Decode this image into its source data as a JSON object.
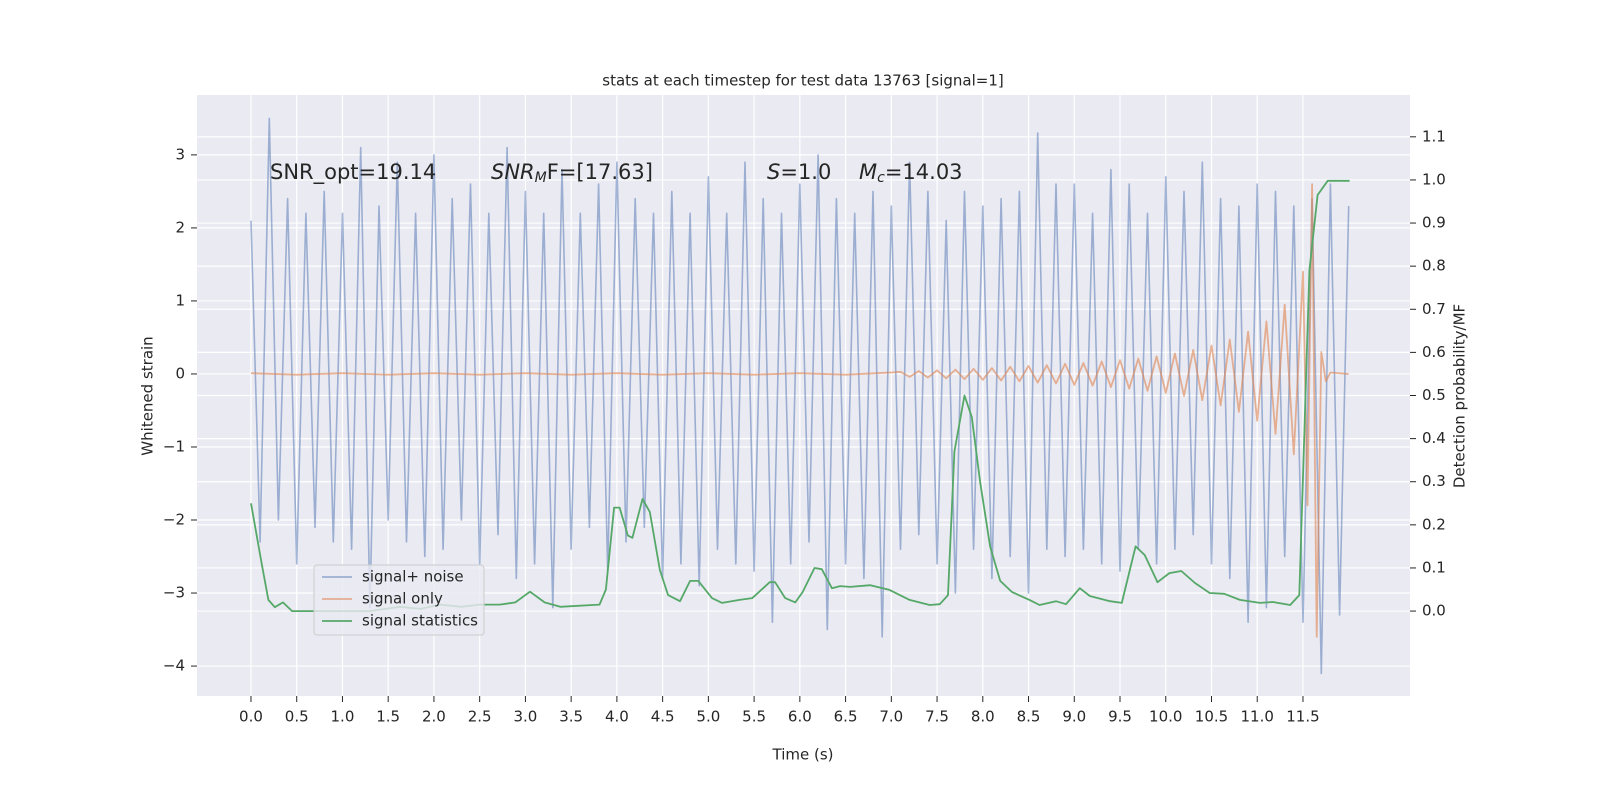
{
  "chart_data": {
    "type": "line",
    "title": "stats at each timestep for test data 13763 [signal=1]",
    "xlabel": "Time (s)",
    "ylabel": "Whitened strain",
    "y2label": "Detection probability/MF",
    "annotations": [
      {
        "text": "SNR_opt=19.14"
      },
      {
        "symbol": "SNR",
        "sub": "M",
        "text": "F=[17.63]"
      },
      {
        "symbol": "S",
        "text": "=1.0"
      },
      {
        "symbol": "M",
        "sub": "c",
        "text": "=14.03"
      }
    ],
    "xlim": [
      -0.59,
      12.67
    ],
    "ylim": [
      -4.41,
      3.82
    ],
    "y2lim": [
      -0.197,
      1.197
    ],
    "xticks": [
      {
        "value": 0,
        "label": "0.0"
      },
      0.5,
      {
        "value": 1,
        "label": "1.0"
      },
      1.5,
      {
        "value": 2,
        "label": "2.0"
      },
      2.5,
      {
        "value": 3,
        "label": "3.0"
      },
      3.5,
      {
        "value": 4,
        "label": "4.0"
      },
      4.5,
      {
        "value": 5,
        "label": "5.0"
      },
      5.5,
      {
        "value": 6,
        "label": "6.0"
      },
      6.5,
      {
        "value": 7,
        "label": "7.0"
      },
      7.5,
      {
        "value": 8,
        "label": "8.0"
      },
      8.5,
      {
        "value": 9,
        "label": "9.0"
      },
      9.5,
      {
        "value": 10,
        "label": "10.0"
      },
      10.5,
      {
        "value": 11,
        "label": "11.0"
      },
      11.5
    ],
    "yticks": [
      {
        "value": -4,
        "label": "−4"
      },
      {
        "value": -3,
        "label": "−3"
      },
      {
        "value": -2,
        "label": "−2"
      },
      {
        "value": -1,
        "label": "−1"
      },
      0,
      1,
      2,
      3
    ],
    "y2ticks": [
      {
        "value": 0,
        "label": "0.0"
      },
      0.1,
      0.2,
      0.3,
      0.4,
      0.5,
      0.6,
      0.7,
      0.8,
      0.9,
      {
        "value": 1,
        "label": "1.0"
      },
      1.1
    ],
    "grid": true,
    "legend": "lower left",
    "series": [
      {
        "name": "signal+ noise",
        "color": "#4c72b0",
        "opacity": 0.5,
        "x": [
          0,
          0.1,
          0.2,
          0.3,
          0.4,
          0.5,
          0.6,
          0.7,
          0.8,
          0.9,
          1,
          1.1,
          1.2,
          1.3,
          1.4,
          1.5,
          1.6,
          1.7,
          1.8,
          1.9,
          2,
          2.1,
          2.2,
          2.3,
          2.4,
          2.5,
          2.6,
          2.7,
          2.8,
          2.9,
          3,
          3.1,
          3.2,
          3.3,
          3.4,
          3.5,
          3.6,
          3.7,
          3.8,
          3.9,
          4,
          4.1,
          4.2,
          4.3,
          4.4,
          4.5,
          4.6,
          4.7,
          4.8,
          4.9,
          5,
          5.1,
          5.2,
          5.3,
          5.4,
          5.5,
          5.6,
          5.7,
          5.8,
          5.9,
          6,
          6.1,
          6.2,
          6.3,
          6.4,
          6.5,
          6.6,
          6.7,
          6.8,
          6.9,
          7,
          7.1,
          7.2,
          7.3,
          7.4,
          7.5,
          7.6,
          7.7,
          7.8,
          7.9,
          8,
          8.1,
          8.2,
          8.3,
          8.4,
          8.5,
          8.6,
          8.7,
          8.8,
          8.9,
          9,
          9.1,
          9.2,
          9.3,
          9.4,
          9.5,
          9.6,
          9.7,
          9.8,
          9.9,
          10,
          10.1,
          10.2,
          10.3,
          10.4,
          10.5,
          10.6,
          10.7,
          10.8,
          10.9,
          11,
          11.1,
          11.2,
          11.3,
          11.4,
          11.5,
          11.6,
          11.7,
          11.8,
          11.9,
          12
        ],
        "values": [
          2.1,
          -2.3,
          3.5,
          -2.0,
          2.4,
          -2.6,
          2.2,
          -2.1,
          2.5,
          -2.3,
          2.2,
          -2.4,
          3.1,
          -3.2,
          2.3,
          -2.0,
          2.9,
          -2.3,
          2.2,
          -2.5,
          3.0,
          -2.4,
          2.4,
          -2.0,
          2.6,
          -2.6,
          2.2,
          -2.2,
          3.1,
          -2.8,
          2.5,
          -2.6,
          2.2,
          -3.2,
          2.8,
          -2.4,
          2.2,
          -2.1,
          2.6,
          -2.7,
          2.9,
          -2.3,
          2.4,
          -2.1,
          2.2,
          -2.8,
          2.5,
          -2.6,
          2.2,
          -2.9,
          2.7,
          -2.4,
          2.2,
          -2.6,
          2.9,
          -2.7,
          2.4,
          -3.4,
          2.2,
          -2.6,
          2.6,
          -2.3,
          3.0,
          -3.5,
          2.4,
          -2.6,
          2.2,
          -2.8,
          2.5,
          -3.6,
          2.3,
          -2.4,
          2.9,
          -2.2,
          2.5,
          -2.6,
          2.1,
          -3.0,
          2.5,
          -2.4,
          2.3,
          -2.8,
          2.4,
          -2.5,
          2.5,
          -3.0,
          3.3,
          -2.4,
          2.6,
          -2.5,
          2.6,
          -2.4,
          2.2,
          -2.6,
          2.8,
          -2.7,
          2.6,
          -2.4,
          2.2,
          -2.6,
          2.7,
          -2.4,
          2.5,
          -2.2,
          2.9,
          -2.6,
          2.4,
          -2.8,
          2.3,
          -3.4,
          2.6,
          -3.2,
          2.5,
          -2.5,
          2.3,
          -3.4,
          2.4,
          -4.1,
          2.6,
          -3.3,
          2.3
        ]
      },
      {
        "name": "signal only",
        "color": "#dd8452",
        "opacity": 0.6,
        "x": [
          0,
          0.5,
          1,
          1.5,
          2,
          2.5,
          3,
          3.5,
          4,
          4.5,
          5,
          5.5,
          6,
          6.5,
          7,
          7.1,
          7.2,
          7.3,
          7.4,
          7.5,
          7.6,
          7.7,
          7.8,
          7.9,
          8,
          8.1,
          8.2,
          8.3,
          8.4,
          8.5,
          8.6,
          8.7,
          8.8,
          8.9,
          9,
          9.1,
          9.2,
          9.3,
          9.4,
          9.5,
          9.6,
          9.7,
          9.8,
          9.9,
          10,
          10.1,
          10.2,
          10.3,
          10.4,
          10.5,
          10.6,
          10.7,
          10.8,
          10.9,
          11,
          11.1,
          11.2,
          11.3,
          11.4,
          11.5,
          11.55,
          11.6,
          11.65,
          11.7,
          11.75,
          11.8,
          12
        ],
        "values": [
          0.01,
          -0.01,
          0.01,
          -0.01,
          0.01,
          -0.01,
          0.01,
          -0.01,
          0.01,
          -0.01,
          0.01,
          -0.01,
          0.01,
          -0.01,
          0.02,
          0.03,
          -0.04,
          0.04,
          -0.05,
          0.05,
          -0.06,
          0.06,
          -0.07,
          0.07,
          -0.08,
          0.08,
          -0.09,
          0.1,
          -0.1,
          0.11,
          -0.12,
          0.12,
          -0.13,
          0.14,
          -0.15,
          0.15,
          -0.16,
          0.17,
          -0.18,
          0.19,
          -0.2,
          0.21,
          -0.23,
          0.24,
          -0.26,
          0.28,
          -0.3,
          0.33,
          -0.36,
          0.39,
          -0.43,
          0.47,
          -0.52,
          0.58,
          -0.64,
          0.72,
          -0.82,
          0.95,
          -1.1,
          1.4,
          -1.8,
          2.6,
          -3.6,
          0.3,
          -0.1,
          0.02,
          0.0
        ]
      },
      {
        "name": "signal statistics",
        "color": "#55a868",
        "opacity": 1,
        "axis": "y2",
        "x": [
          0,
          0.12,
          0.19,
          0.26,
          0.35,
          0.45,
          0.65,
          0.97,
          1.3,
          1.63,
          1.85,
          2.07,
          2.3,
          2.5,
          2.72,
          2.89,
          3.05,
          3.21,
          3.38,
          3.81,
          3.88,
          3.97,
          4.03,
          4.12,
          4.17,
          4.28,
          4.36,
          4.47,
          4.56,
          4.69,
          4.8,
          4.89,
          5.04,
          5.15,
          5.34,
          5.48,
          5.67,
          5.73,
          5.84,
          5.95,
          6.03,
          6.16,
          6.24,
          6.35,
          6.44,
          6.55,
          6.77,
          6.98,
          7.2,
          7.42,
          7.53,
          7.62,
          7.69,
          7.8,
          7.88,
          7.97,
          8.08,
          8.19,
          8.32,
          8.51,
          8.62,
          8.8,
          8.91,
          9.06,
          9.17,
          9.39,
          9.52,
          9.67,
          9.77,
          9.91,
          10.04,
          10.17,
          10.32,
          10.48,
          10.64,
          10.81,
          11.03,
          11.17,
          11.36,
          11.46,
          11.57,
          11.66,
          11.77,
          12.01
        ],
        "values": [
          0.25,
          0.107,
          0.026,
          0.009,
          0.02,
          0.0,
          0.0,
          0.0,
          0.0,
          0.01,
          0.005,
          0.015,
          0.01,
          0.015,
          0.015,
          0.02,
          0.045,
          0.02,
          0.01,
          0.015,
          0.05,
          0.24,
          0.24,
          0.175,
          0.17,
          0.26,
          0.23,
          0.095,
          0.037,
          0.023,
          0.07,
          0.07,
          0.03,
          0.019,
          0.026,
          0.03,
          0.067,
          0.067,
          0.03,
          0.02,
          0.044,
          0.1,
          0.097,
          0.053,
          0.058,
          0.056,
          0.06,
          0.049,
          0.026,
          0.014,
          0.016,
          0.037,
          0.37,
          0.5,
          0.45,
          0.3,
          0.15,
          0.07,
          0.044,
          0.026,
          0.014,
          0.023,
          0.016,
          0.053,
          0.035,
          0.023,
          0.019,
          0.15,
          0.13,
          0.067,
          0.088,
          0.093,
          0.065,
          0.042,
          0.04,
          0.026,
          0.019,
          0.021,
          0.014,
          0.037,
          0.79,
          0.965,
          0.998,
          0.998
        ]
      }
    ]
  }
}
